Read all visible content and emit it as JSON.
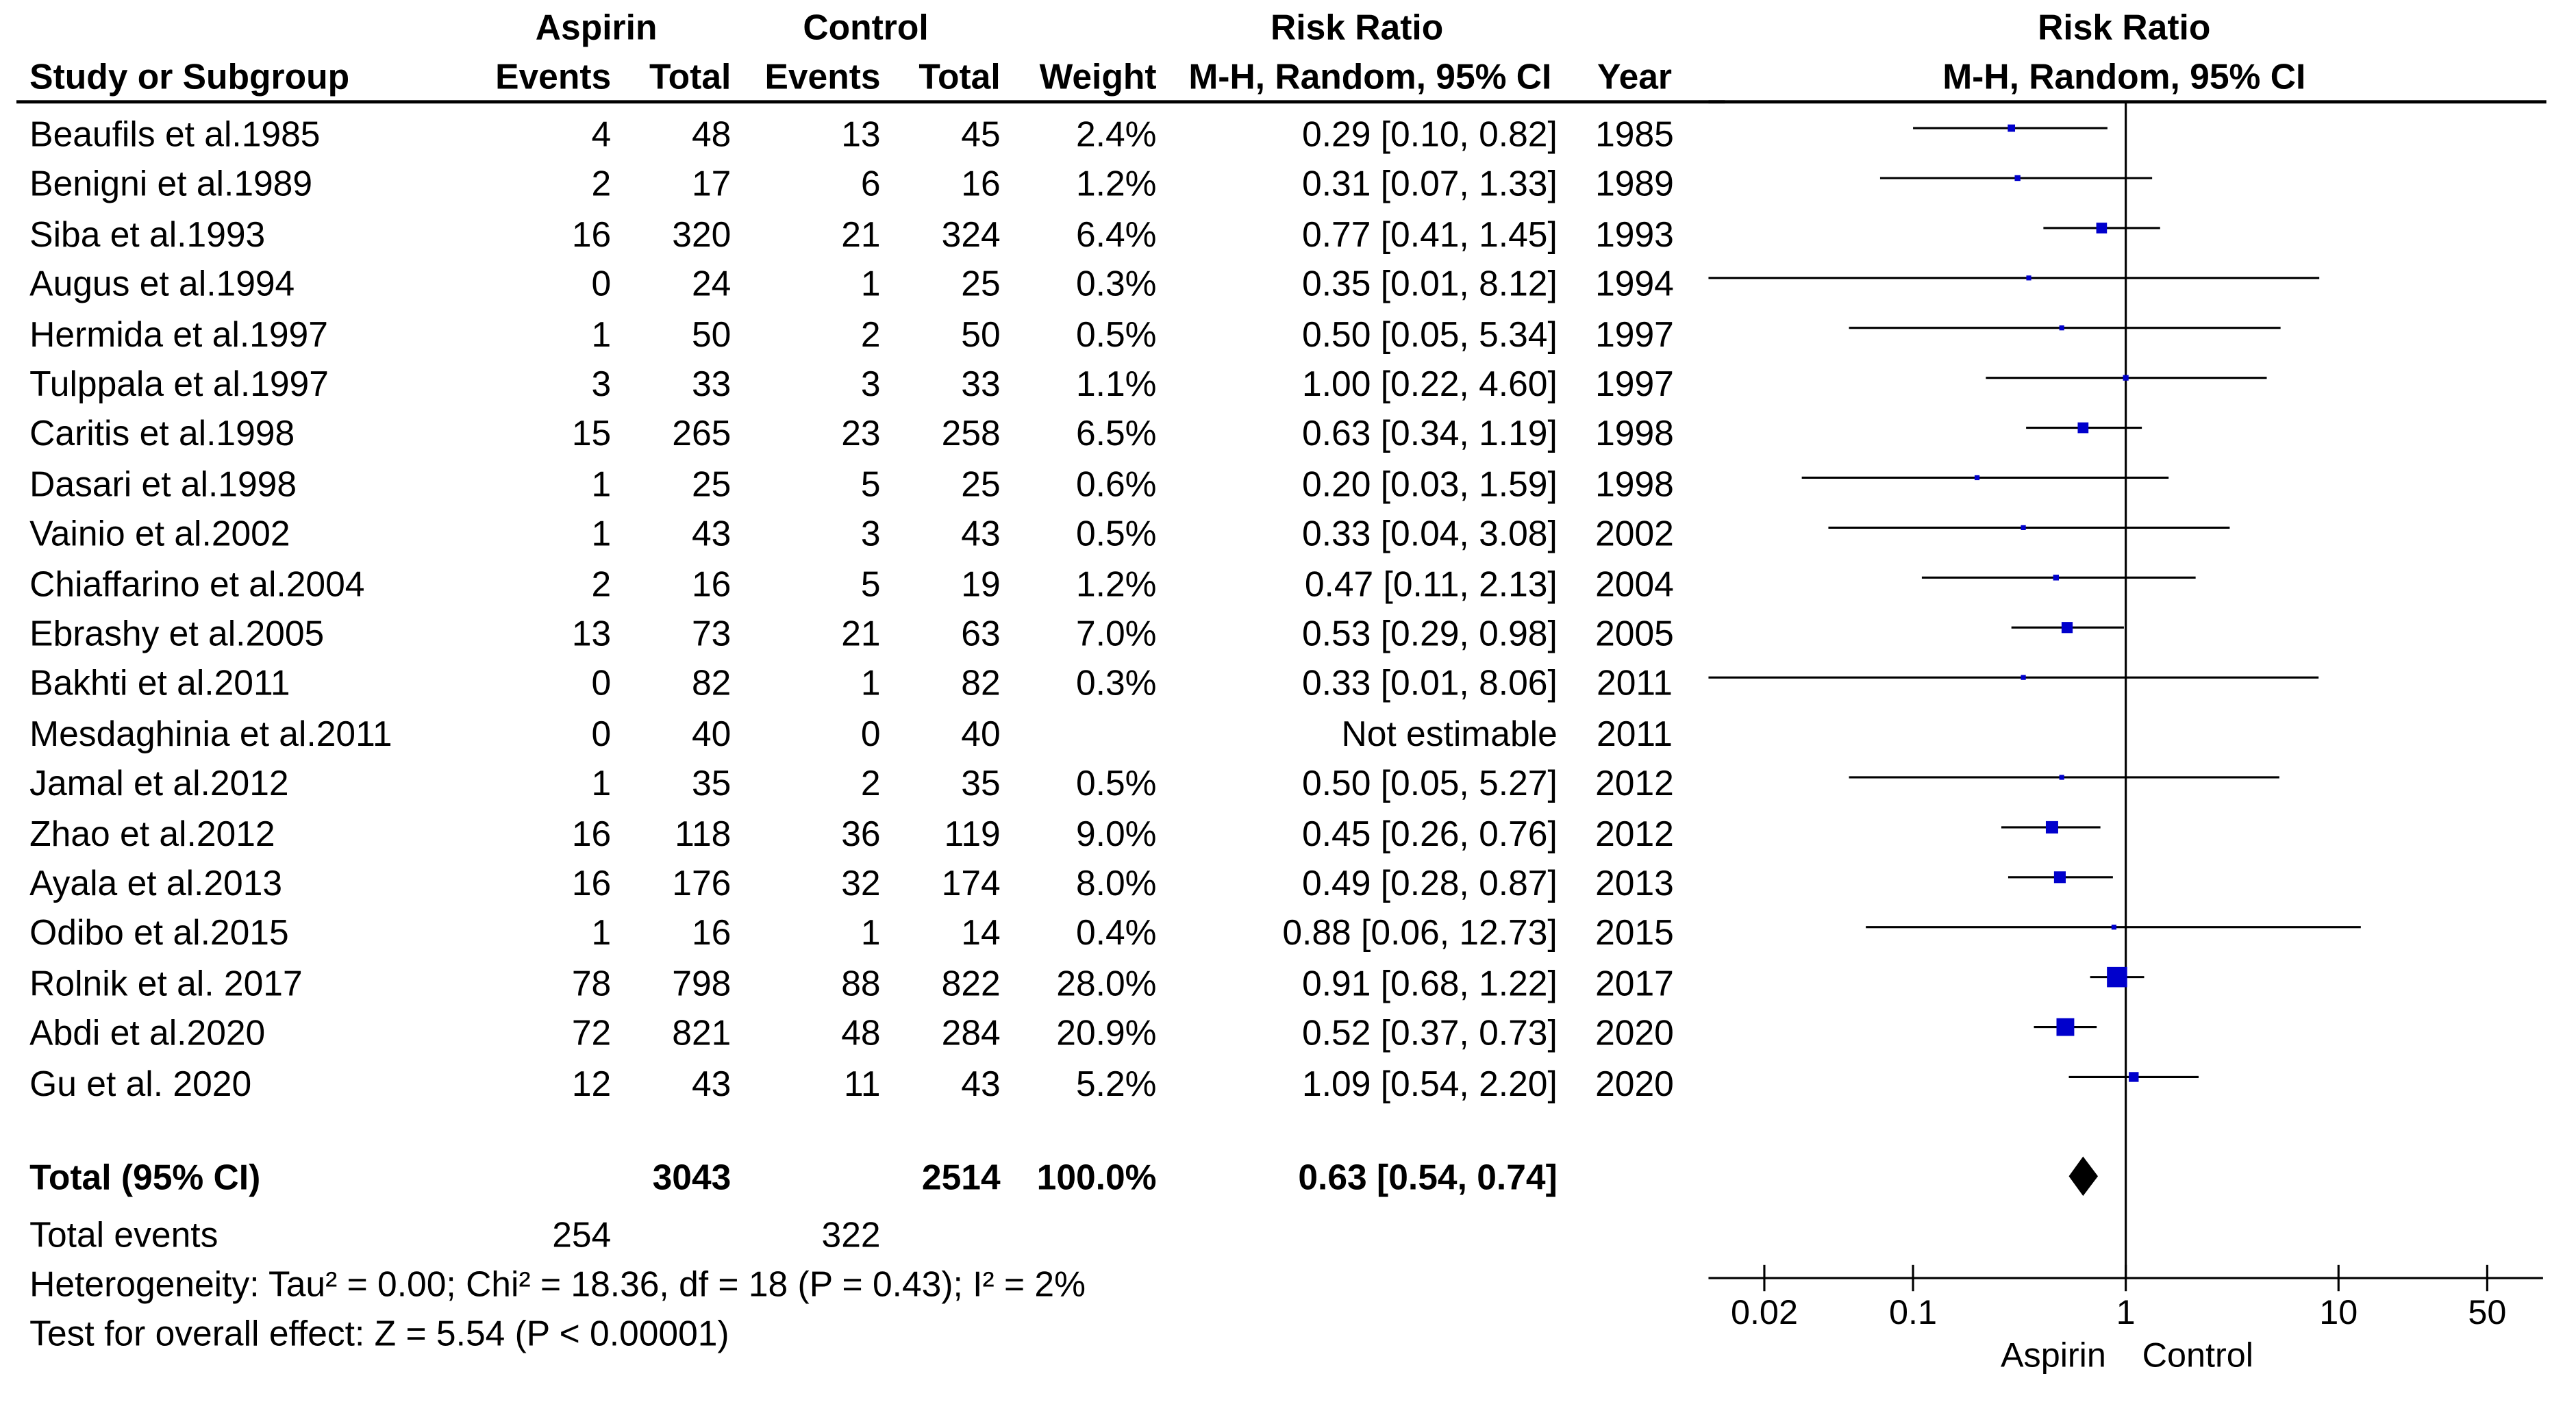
{
  "header": {
    "aspirin_group": "Aspirin",
    "control_group": "Control",
    "study_col": "Study or Subgroup",
    "events_col": "Events",
    "total_col": "Total",
    "weight_col": "Weight",
    "rr_col_title": "Risk Ratio",
    "rr_col_method": "M-H, Random, 95% CI",
    "year_col": "Year",
    "plot_title": "Risk Ratio",
    "plot_method": "M-H, Random, 95% CI"
  },
  "studies": [
    {
      "name": "Beaufils et al.1985",
      "ae": "4",
      "at": "48",
      "ce": "13",
      "ct": "45",
      "weight": "2.4%",
      "rr_text": "0.29 [0.10, 0.82]",
      "year": "1985",
      "rr": 0.29,
      "lo": 0.1,
      "hi": 0.82,
      "w": 2.4
    },
    {
      "name": "Benigni et al.1989",
      "ae": "2",
      "at": "17",
      "ce": "6",
      "ct": "16",
      "weight": "1.2%",
      "rr_text": "0.31 [0.07, 1.33]",
      "year": "1989",
      "rr": 0.31,
      "lo": 0.07,
      "hi": 1.33,
      "w": 1.2
    },
    {
      "name": "Siba et al.1993",
      "ae": "16",
      "at": "320",
      "ce": "21",
      "ct": "324",
      "weight": "6.4%",
      "rr_text": "0.77 [0.41, 1.45]",
      "year": "1993",
      "rr": 0.77,
      "lo": 0.41,
      "hi": 1.45,
      "w": 6.4
    },
    {
      "name": "Augus et al.1994",
      "ae": "0",
      "at": "24",
      "ce": "1",
      "ct": "25",
      "weight": "0.3%",
      "rr_text": "0.35 [0.01, 8.12]",
      "year": "1994",
      "rr": 0.35,
      "lo": 0.01,
      "hi": 8.12,
      "w": 0.3
    },
    {
      "name": "Hermida et al.1997",
      "ae": "1",
      "at": "50",
      "ce": "2",
      "ct": "50",
      "weight": "0.5%",
      "rr_text": "0.50 [0.05, 5.34]",
      "year": "1997",
      "rr": 0.5,
      "lo": 0.05,
      "hi": 5.34,
      "w": 0.5
    },
    {
      "name": "Tulppala et al.1997",
      "ae": "3",
      "at": "33",
      "ce": "3",
      "ct": "33",
      "weight": "1.1%",
      "rr_text": "1.00 [0.22, 4.60]",
      "year": "1997",
      "rr": 1.0,
      "lo": 0.22,
      "hi": 4.6,
      "w": 1.1
    },
    {
      "name": "Caritis et al.1998",
      "ae": "15",
      "at": "265",
      "ce": "23",
      "ct": "258",
      "weight": "6.5%",
      "rr_text": "0.63 [0.34, 1.19]",
      "year": "1998",
      "rr": 0.63,
      "lo": 0.34,
      "hi": 1.19,
      "w": 6.5
    },
    {
      "name": "Dasari et al.1998",
      "ae": "1",
      "at": "25",
      "ce": "5",
      "ct": "25",
      "weight": "0.6%",
      "rr_text": "0.20 [0.03, 1.59]",
      "year": "1998",
      "rr": 0.2,
      "lo": 0.03,
      "hi": 1.59,
      "w": 0.6
    },
    {
      "name": "Vainio et al.2002",
      "ae": "1",
      "at": "43",
      "ce": "3",
      "ct": "43",
      "weight": "0.5%",
      "rr_text": "0.33 [0.04, 3.08]",
      "year": "2002",
      "rr": 0.33,
      "lo": 0.04,
      "hi": 3.08,
      "w": 0.5
    },
    {
      "name": "Chiaffarino et al.2004",
      "ae": "2",
      "at": "16",
      "ce": "5",
      "ct": "19",
      "weight": "1.2%",
      "rr_text": "0.47 [0.11, 2.13]",
      "year": "2004",
      "rr": 0.47,
      "lo": 0.11,
      "hi": 2.13,
      "w": 1.2
    },
    {
      "name": "Ebrashy et al.2005",
      "ae": "13",
      "at": "73",
      "ce": "21",
      "ct": "63",
      "weight": "7.0%",
      "rr_text": "0.53 [0.29, 0.98]",
      "year": "2005",
      "rr": 0.53,
      "lo": 0.29,
      "hi": 0.98,
      "w": 7.0
    },
    {
      "name": "Bakhti et al.2011",
      "ae": "0",
      "at": "82",
      "ce": "1",
      "ct": "82",
      "weight": "0.3%",
      "rr_text": "0.33 [0.01, 8.06]",
      "year": "2011",
      "rr": 0.33,
      "lo": 0.01,
      "hi": 8.06,
      "w": 0.3
    },
    {
      "name": "Mesdaghinia et al.2011",
      "ae": "0",
      "at": "40",
      "ce": "0",
      "ct": "40",
      "weight": "",
      "rr_text": "Not estimable",
      "year": "2011",
      "rr": null,
      "lo": null,
      "hi": null,
      "w": 0
    },
    {
      "name": "Jamal et al.2012",
      "ae": "1",
      "at": "35",
      "ce": "2",
      "ct": "35",
      "weight": "0.5%",
      "rr_text": "0.50 [0.05, 5.27]",
      "year": "2012",
      "rr": 0.5,
      "lo": 0.05,
      "hi": 5.27,
      "w": 0.5
    },
    {
      "name": "Zhao et al.2012",
      "ae": "16",
      "at": "118",
      "ce": "36",
      "ct": "119",
      "weight": "9.0%",
      "rr_text": "0.45 [0.26, 0.76]",
      "year": "2012",
      "rr": 0.45,
      "lo": 0.26,
      "hi": 0.76,
      "w": 9.0
    },
    {
      "name": "Ayala et al.2013",
      "ae": "16",
      "at": "176",
      "ce": "32",
      "ct": "174",
      "weight": "8.0%",
      "rr_text": "0.49 [0.28, 0.87]",
      "year": "2013",
      "rr": 0.49,
      "lo": 0.28,
      "hi": 0.87,
      "w": 8.0
    },
    {
      "name": "Odibo et al.2015",
      "ae": "1",
      "at": "16",
      "ce": "1",
      "ct": "14",
      "weight": "0.4%",
      "rr_text": "0.88 [0.06, 12.73]",
      "year": "2015",
      "rr": 0.88,
      "lo": 0.06,
      "hi": 12.73,
      "w": 0.4
    },
    {
      "name": "Rolnik et al. 2017",
      "ae": "78",
      "at": "798",
      "ce": "88",
      "ct": "822",
      "weight": "28.0%",
      "rr_text": "0.91 [0.68, 1.22]",
      "year": "2017",
      "rr": 0.91,
      "lo": 0.68,
      "hi": 1.22,
      "w": 28.0
    },
    {
      "name": "Abdi et al.2020",
      "ae": "72",
      "at": "821",
      "ce": "48",
      "ct": "284",
      "weight": "20.9%",
      "rr_text": "0.52 [0.37, 0.73]",
      "year": "2020",
      "rr": 0.52,
      "lo": 0.37,
      "hi": 0.73,
      "w": 20.9
    },
    {
      "name": "Gu et al. 2020",
      "ae": "12",
      "at": "43",
      "ce": "11",
      "ct": "43",
      "weight": "5.2%",
      "rr_text": "1.09 [0.54, 2.20]",
      "year": "2020",
      "rr": 1.09,
      "lo": 0.54,
      "hi": 2.2,
      "w": 5.2
    }
  ],
  "total": {
    "label": "Total (95% CI)",
    "at": "3043",
    "ct": "2514",
    "weight": "100.0%",
    "rr_text": "0.63 [0.54, 0.74]",
    "rr": 0.63,
    "lo": 0.54,
    "hi": 0.74
  },
  "total_events": {
    "label": "Total events",
    "aspirin": "254",
    "control": "322"
  },
  "heterogeneity": "Heterogeneity: Tau² = 0.00; Chi² = 18.36, df = 18 (P = 0.43); I² = 2%",
  "overall_effect": "Test for overall effect: Z = 5.54 (P < 0.00001)",
  "chart_data": {
    "type": "scatter",
    "title": "Risk Ratio",
    "subtitle": "M-H, Random, 95% CI",
    "xscale": "log",
    "xlim": [
      0.01,
      100
    ],
    "xticks": [
      0.02,
      0.1,
      1,
      10,
      50
    ],
    "xtick_labels": [
      "0.02",
      "0.1",
      "1",
      "10",
      "50"
    ],
    "favours_left": "Aspirin",
    "favours_right": "Control",
    "null_line": 1,
    "marker_color": "#0000cc",
    "diamond_color": "#000000"
  }
}
